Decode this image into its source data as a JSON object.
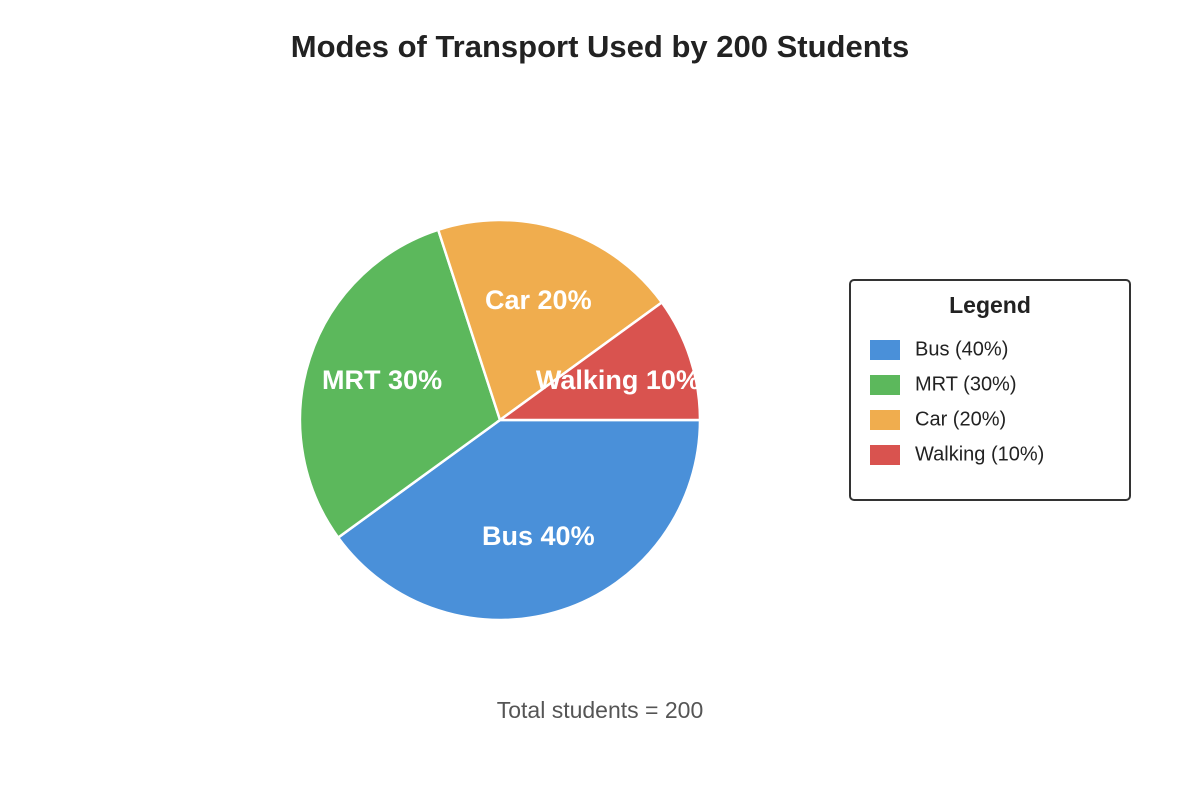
{
  "chart_data": {
    "type": "pie",
    "title": "Modes of Transport Used by 200 Students",
    "categories": [
      "Bus",
      "MRT",
      "Car",
      "Walking"
    ],
    "values": [
      40,
      30,
      20,
      10
    ],
    "value_labels": [
      "Bus 40%",
      "MRT 30%",
      "Car 20%",
      "Walking 10%"
    ],
    "colors": [
      "#4a90d9",
      "#5cb85c",
      "#f0ad4e",
      "#d9534f"
    ],
    "legend_title": "Legend",
    "legend_labels": [
      "Bus (40%)",
      "MRT (30%)",
      "Car (20%)",
      "Walking (10%)"
    ],
    "legend": "right",
    "caption": "Total students = 200"
  }
}
